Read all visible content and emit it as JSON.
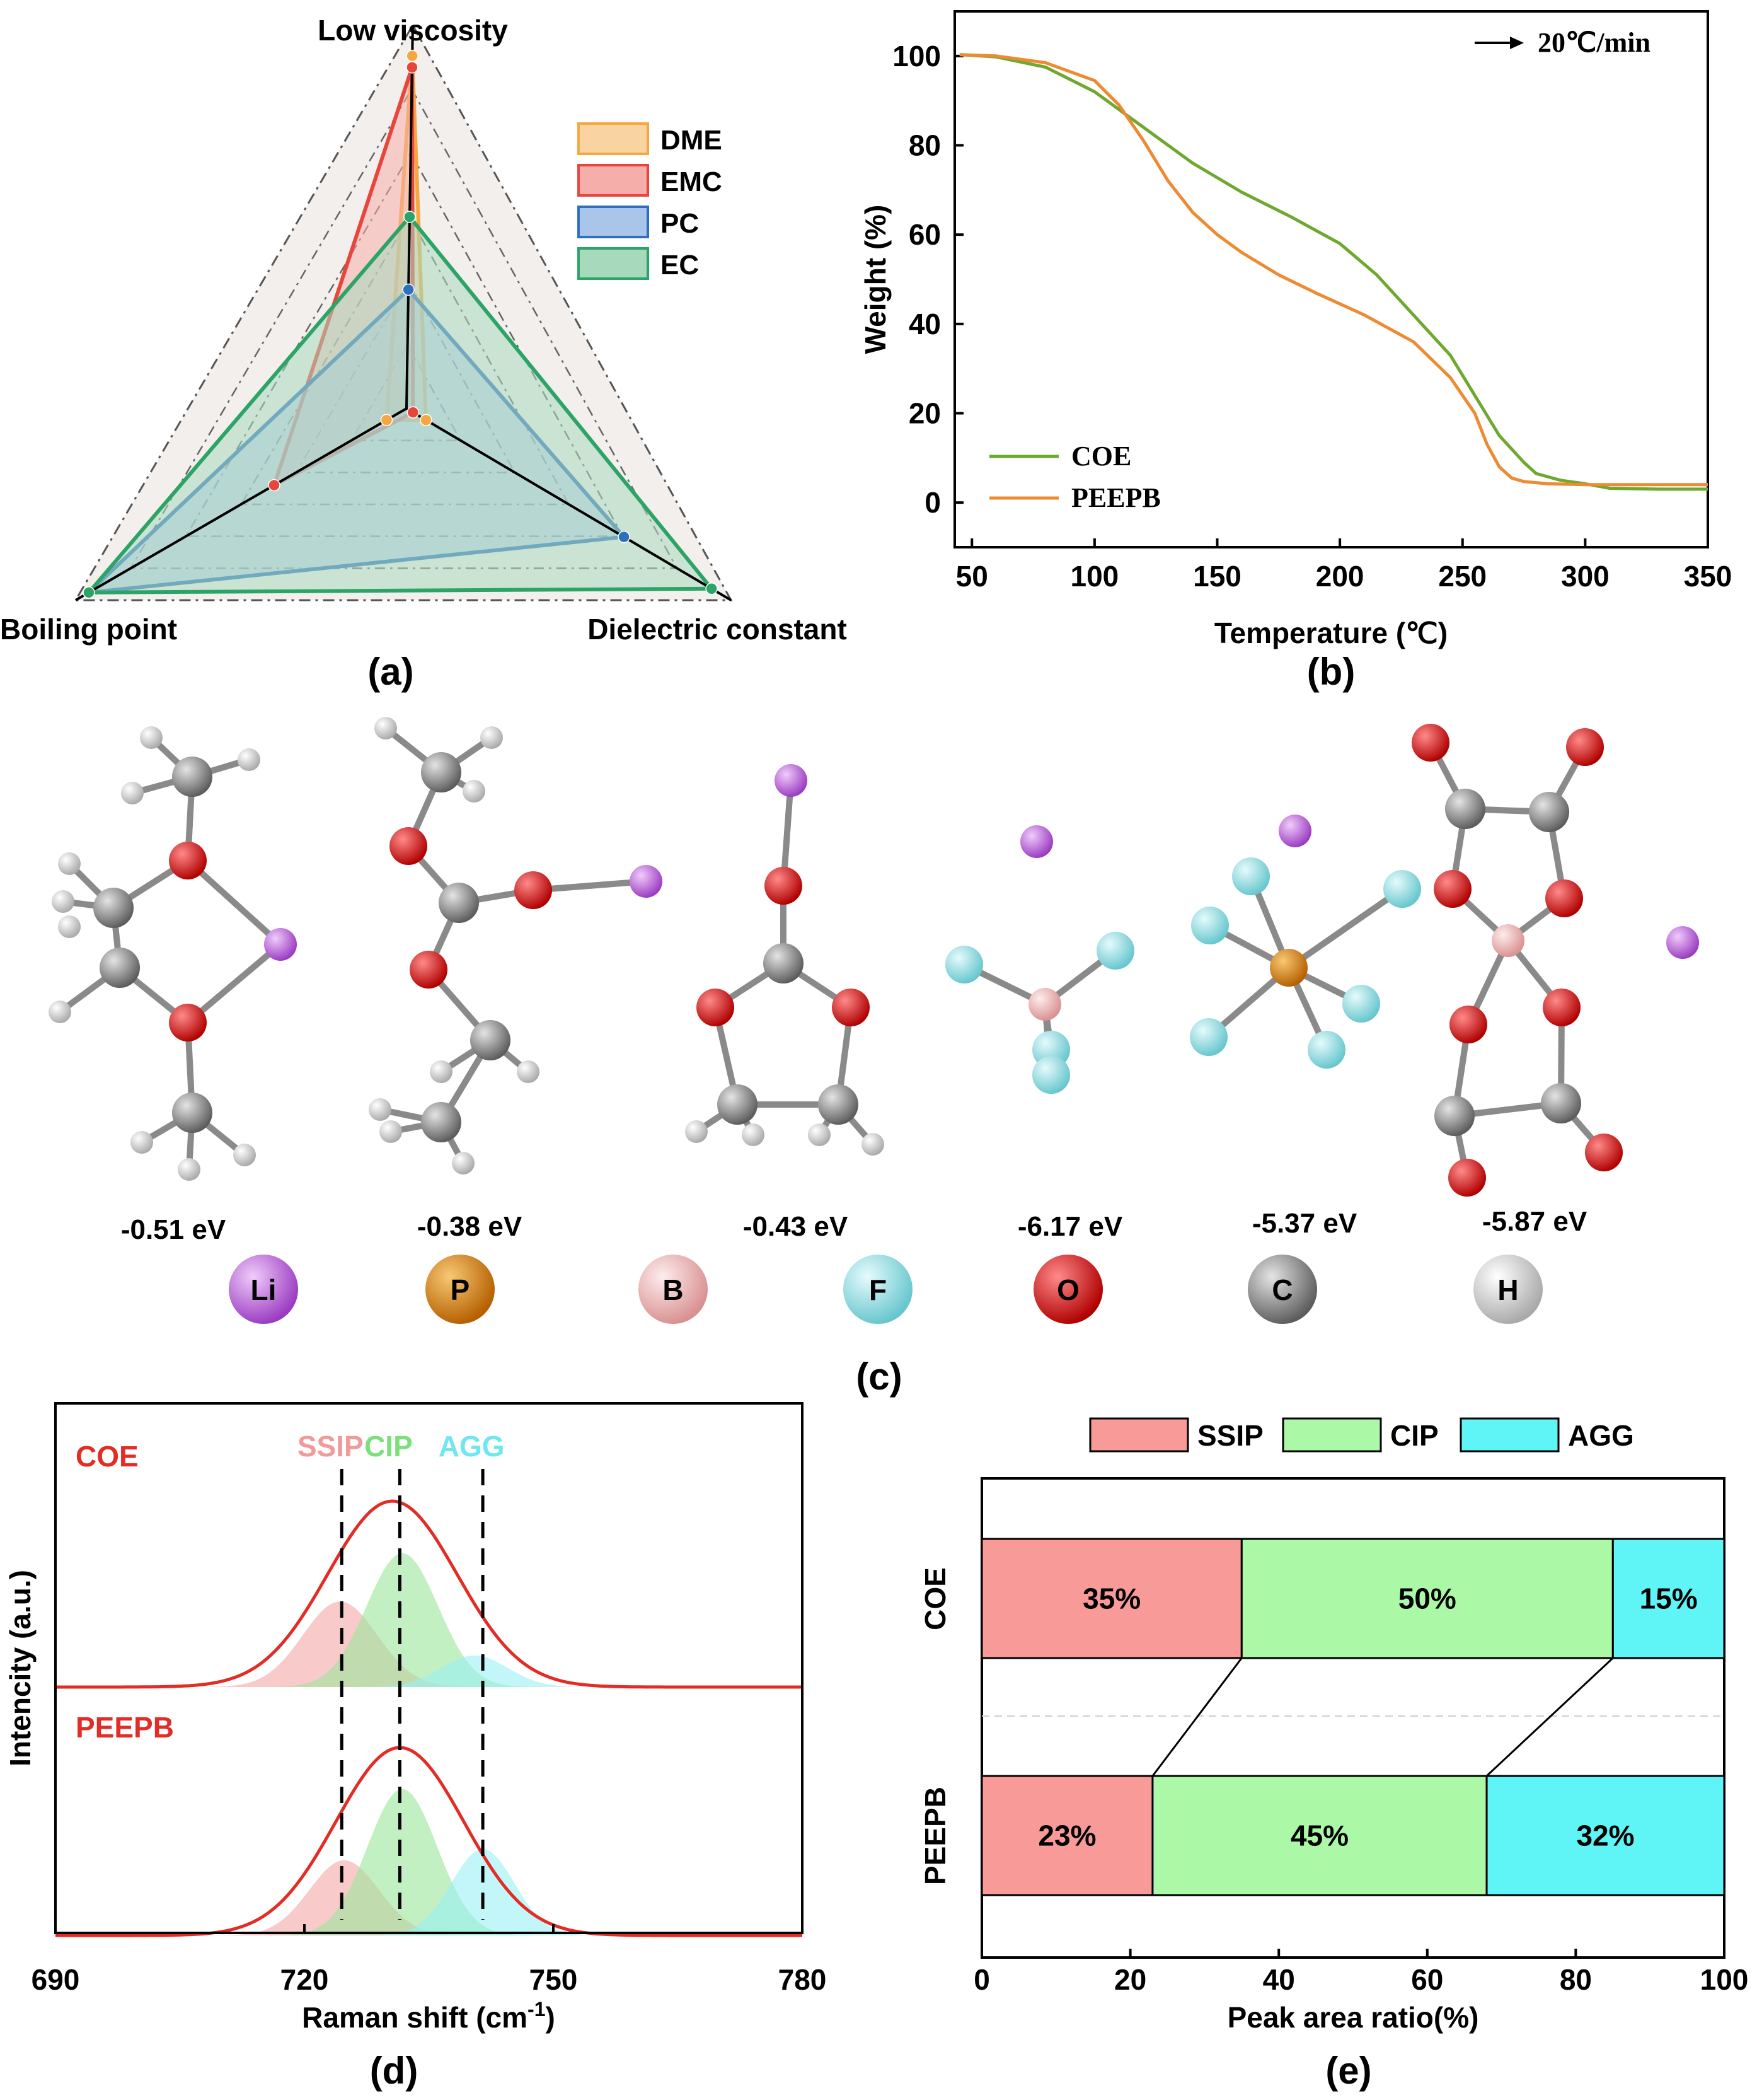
{
  "chart_data": [
    {
      "panel": "(a)",
      "type": "radar",
      "axes": [
        "Low viscosity",
        "Dielectric constant",
        "Boiling point"
      ],
      "range": [
        0,
        1
      ],
      "rings": 6,
      "series": [
        {
          "name": "DME",
          "color": "#F5A742",
          "fill": "#F9D4A0",
          "values": [
            0.92,
            0.06,
            0.06
          ]
        },
        {
          "name": "EMC",
          "color": "#E8453C",
          "fill": "#F5AEAA",
          "values": [
            0.89,
            0.02,
            0.4
          ]
        },
        {
          "name": "PC",
          "color": "#2F6FC0",
          "fill": "#A9C5EA",
          "values": [
            0.31,
            0.67,
            0.96
          ]
        },
        {
          "name": "EC",
          "color": "#2BA466",
          "fill": "#A7D9BD",
          "values": [
            0.5,
            0.94,
            0.96
          ]
        }
      ],
      "legend": [
        "DME",
        "EMC",
        "PC",
        "EC"
      ],
      "labels": {
        "top": "Low viscosity",
        "left": "Boiling point",
        "right": "Dielectric constant"
      }
    },
    {
      "panel": "(b)",
      "type": "line",
      "title": "",
      "xlabel": "Temperature (℃)",
      "ylabel": "Weight (%)",
      "xlim": [
        43,
        350
      ],
      "ylim": [
        -10,
        110
      ],
      "xticks": [
        50,
        100,
        150,
        200,
        250,
        300,
        350
      ],
      "yticks": [
        0,
        20,
        40,
        60,
        80,
        100
      ],
      "annotation": "20℃/min",
      "series": [
        {
          "name": "COE",
          "color": "#6FA82E",
          "x": [
            45,
            60,
            80,
            100,
            120,
            140,
            160,
            180,
            200,
            215,
            230,
            245,
            255,
            265,
            275,
            280,
            290,
            300,
            310,
            330,
            350
          ],
          "y": [
            100.3,
            99.8,
            97.5,
            92,
            84,
            76,
            69.5,
            64,
            58,
            51,
            42,
            33,
            24,
            15,
            9,
            6.5,
            5,
            4.2,
            3.2,
            3,
            3
          ]
        },
        {
          "name": "PEEPB",
          "color": "#EE8B32",
          "x": [
            45,
            60,
            80,
            100,
            110,
            120,
            130,
            140,
            150,
            160,
            175,
            190,
            210,
            230,
            245,
            255,
            260,
            265,
            270,
            275,
            285,
            300,
            330,
            350
          ],
          "y": [
            100.3,
            100,
            98.5,
            94.5,
            89,
            81,
            72,
            65,
            60,
            56,
            51,
            47,
            42,
            36,
            28,
            20,
            13,
            8,
            5.5,
            4.7,
            4.2,
            4,
            4,
            4
          ]
        }
      ]
    },
    {
      "panel": "(d)",
      "type": "area",
      "xlabel": "Raman shift (cm",
      "xlabel_sup": "-1",
      "xlabel_end": ")",
      "ylabel": "Intencity (a.u.)",
      "xlim": [
        690,
        780
      ],
      "xticks": [
        690,
        720,
        750,
        780
      ],
      "dashed_lines_x": [
        724.5,
        731.5,
        741.5
      ],
      "peak_labels": [
        {
          "name": "SSIP",
          "x": 724.5,
          "color": "#F29A9A"
        },
        {
          "name": "CIP",
          "x": 731.5,
          "color": "#7BE07B"
        },
        {
          "name": "AGG",
          "x": 741.5,
          "color": "#6FE6F0"
        }
      ],
      "series": [
        {
          "name": "COE",
          "components": [
            {
              "name": "SSIP",
              "center": 724.3,
              "sigma": 4.5,
              "height": 0.46,
              "color": "#F3A7A7"
            },
            {
              "name": "CIP",
              "center": 731.8,
              "sigma": 4.3,
              "height": 0.72,
              "color": "#9BE69B"
            },
            {
              "name": "AGG",
              "center": 740.5,
              "sigma": 4.0,
              "height": 0.17,
              "color": "#9AF0F3"
            }
          ],
          "envelope": {
            "center": 730.6,
            "sigma": 7.8,
            "height": 1.0,
            "color": "#E22C25"
          }
        },
        {
          "name": "PEEPB",
          "components": [
            {
              "name": "SSIP",
              "center": 724.8,
              "sigma": 4.2,
              "height": 0.4,
              "color": "#F3A7A7"
            },
            {
              "name": "CIP",
              "center": 731.8,
              "sigma": 4.2,
              "height": 0.78,
              "color": "#9BE69B"
            },
            {
              "name": "AGG",
              "center": 741.5,
              "sigma": 3.8,
              "height": 0.46,
              "color": "#9AF0F3"
            }
          ],
          "envelope": {
            "center": 731.5,
            "sigma": 7.7,
            "height": 1.0,
            "color": "#E22C25"
          }
        }
      ]
    },
    {
      "panel": "(e)",
      "type": "bar",
      "orientation": "horizontal-stacked",
      "xlabel": "Peak area ratio(%)",
      "xlim": [
        0,
        100
      ],
      "xticks": [
        0,
        20,
        40,
        60,
        80,
        100
      ],
      "categories": [
        "COE",
        "PEEPB"
      ],
      "series": [
        {
          "name": "SSIP",
          "color": "#F79A98",
          "values": [
            35,
            23
          ]
        },
        {
          "name": "CIP",
          "color": "#ABF9A6",
          "values": [
            50,
            45
          ]
        },
        {
          "name": "AGG",
          "color": "#5FF5F7",
          "values": [
            15,
            32
          ]
        }
      ],
      "labels": [
        [
          "35%",
          "50%",
          "15%"
        ],
        [
          "23%",
          "45%",
          "32%"
        ]
      ]
    }
  ],
  "panel_c": {
    "energies": [
      "-0.51 eV",
      "-0.38 eV",
      "-0.43 eV",
      "-6.17 eV",
      "-5.37 eV",
      "-5.87 eV"
    ],
    "elements": [
      {
        "symbol": "Li",
        "color": "#B455D9",
        "light": "#E7B8F5"
      },
      {
        "symbol": "P",
        "color": "#D9780A",
        "light": "#F6C46C"
      },
      {
        "symbol": "B",
        "color": "#E8A8A8",
        "light": "#FBE3E3"
      },
      {
        "symbol": "F",
        "color": "#7FD6DC",
        "light": "#D9F6F8"
      },
      {
        "symbol": "O",
        "color": "#E00000",
        "light": "#FF7A7A"
      },
      {
        "symbol": "C",
        "color": "#7C7C7C",
        "light": "#DADADA"
      },
      {
        "symbol": "H",
        "color": "#BDBDBD",
        "light": "#FFFFFF"
      }
    ]
  },
  "panel_labels": [
    "(a)",
    "(b)",
    "(c)",
    "(d)",
    "(e)"
  ]
}
